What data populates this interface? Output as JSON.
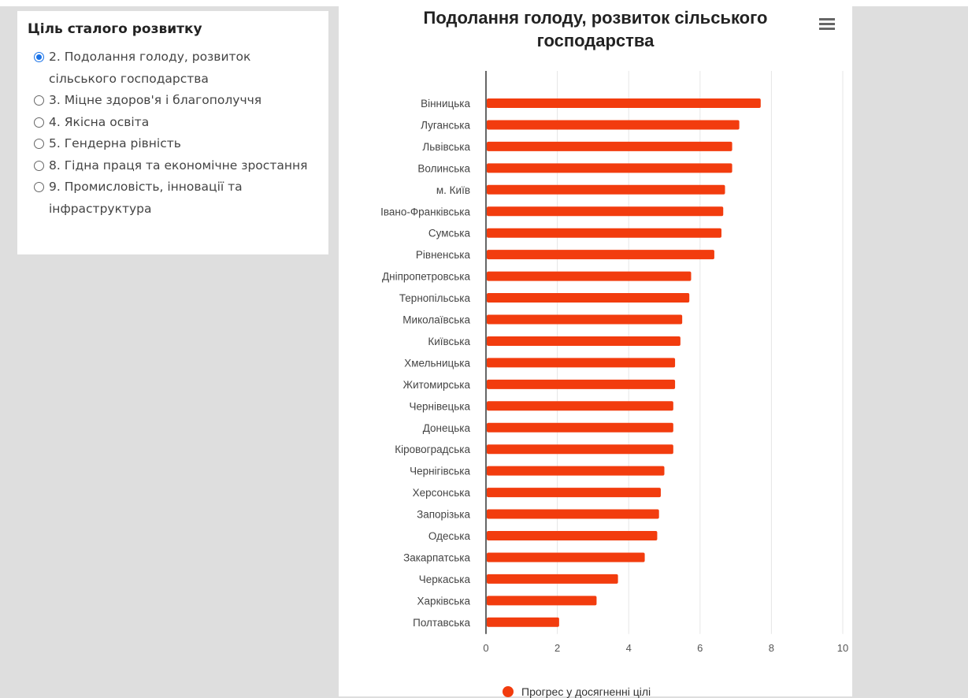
{
  "filter_panel": {
    "title": "Ціль сталого розвитку",
    "options": [
      {
        "label": "2. Подолання голоду, розвиток сільського господарства",
        "selected": true
      },
      {
        "label": "3. Міцне здоров'я і благополуччя",
        "selected": false
      },
      {
        "label": "4. Якісна освіта",
        "selected": false
      },
      {
        "label": "5. Гендерна рівність",
        "selected": false
      },
      {
        "label": "8. Гідна праця та економічне зростання",
        "selected": false
      },
      {
        "label": "9. Промисловість, інновації та інфраструктура",
        "selected": false
      }
    ]
  },
  "menu_icon": "hamburger-icon",
  "chart_data": {
    "type": "bar",
    "orientation": "horizontal",
    "title": "Подолання голоду, розвиток сільського господарства",
    "categories": [
      "Вінницька",
      "Луганська",
      "Львівська",
      "Волинська",
      "м. Київ",
      "Івано-Франківська",
      "Сумська",
      "Рівненська",
      "Дніпропетровська",
      "Тернопільська",
      "Миколаївська",
      "Київська",
      "Хмельницька",
      "Житомирська",
      "Чернівецька",
      "Донецька",
      "Кіровоградська",
      "Чернігівська",
      "Херсонська",
      "Запорізька",
      "Одеська",
      "Закарпатська",
      "Черкаська",
      "Харківська",
      "Полтавська"
    ],
    "series": [
      {
        "name": "Прогрес у досягненні цілі",
        "color": "#f23c0e",
        "values": [
          7.7,
          7.1,
          6.9,
          6.9,
          6.7,
          6.65,
          6.6,
          6.4,
          5.75,
          5.7,
          5.5,
          5.45,
          5.3,
          5.3,
          5.25,
          5.25,
          5.25,
          5.0,
          4.9,
          4.85,
          4.8,
          4.45,
          3.7,
          3.1,
          2.05
        ]
      }
    ],
    "xlim": [
      0,
      10
    ],
    "xticks": [
      "0",
      "2",
      "4",
      "6",
      "8",
      "10"
    ],
    "grid": true,
    "legend": "bottom"
  }
}
